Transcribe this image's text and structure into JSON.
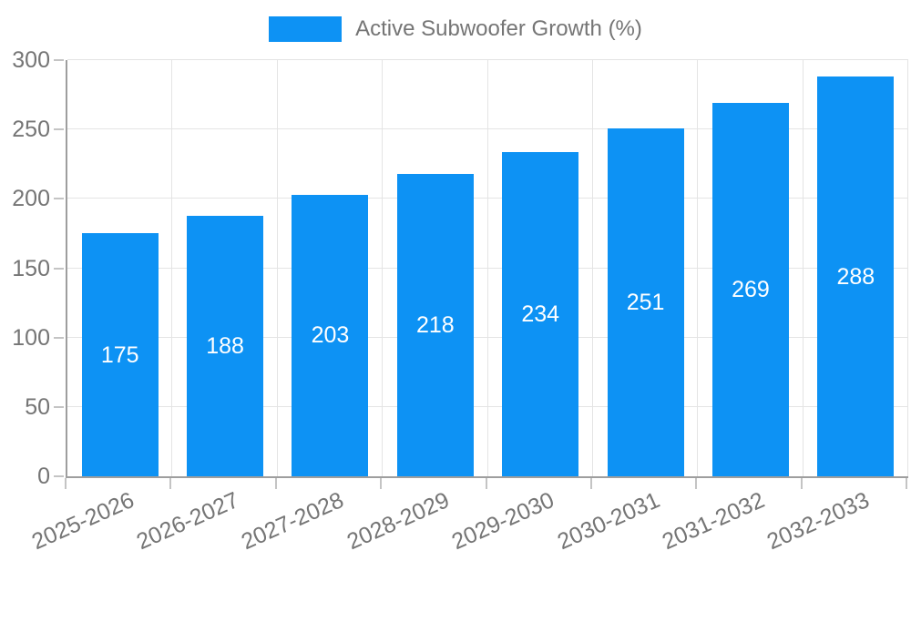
{
  "legend": {
    "label": "Active Subwoofer Growth (%)"
  },
  "colors": {
    "bar": "#0d92f4",
    "axis": "#9e9e9e",
    "grid": "#e4e4e4",
    "tick": "#c4c4c4",
    "text": "#757575",
    "value_label": "#ffffff",
    "background": "#ffffff"
  },
  "chart_data": {
    "type": "bar",
    "title": "Active Subwoofer Growth (%)",
    "series_name": "Active Subwoofer Growth (%)",
    "categories": [
      "2025-2026",
      "2026-2027",
      "2027-2028",
      "2028-2029",
      "2029-2030",
      "2030-2031",
      "2031-2032",
      "2032-2033"
    ],
    "values": [
      175,
      188,
      203,
      218,
      234,
      251,
      269,
      288
    ],
    "xlabel": "",
    "ylabel": "",
    "ylim": [
      0,
      300
    ],
    "yticks": [
      0,
      50,
      100,
      150,
      200,
      250,
      300
    ],
    "grid": true,
    "legend_position": "top-center",
    "value_labels_position": "inside-center",
    "x_label_rotation_deg": -24
  }
}
